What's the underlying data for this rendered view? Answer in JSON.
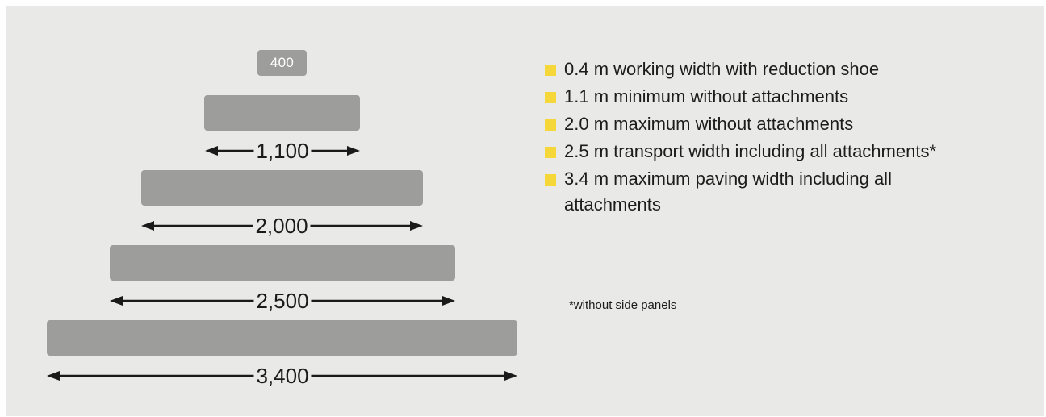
{
  "diagram": {
    "top_label": "400",
    "dimensions": [
      "1,100",
      "2,000",
      "2,500",
      "3,400"
    ]
  },
  "legend": {
    "items": [
      "0.4 m working width with reduction shoe",
      "1.1 m minimum without attachments",
      "2.0 m maximum without attachments",
      "2.5 m transport width including all attachments*",
      "3.4 m maximum paving width including all attachments"
    ],
    "marker_color": "#f5d73a"
  },
  "footnote": "*without side panels",
  "colors": {
    "background": "#e9e9e7",
    "bar": "#9d9d9b",
    "text": "#1c1c1c"
  }
}
